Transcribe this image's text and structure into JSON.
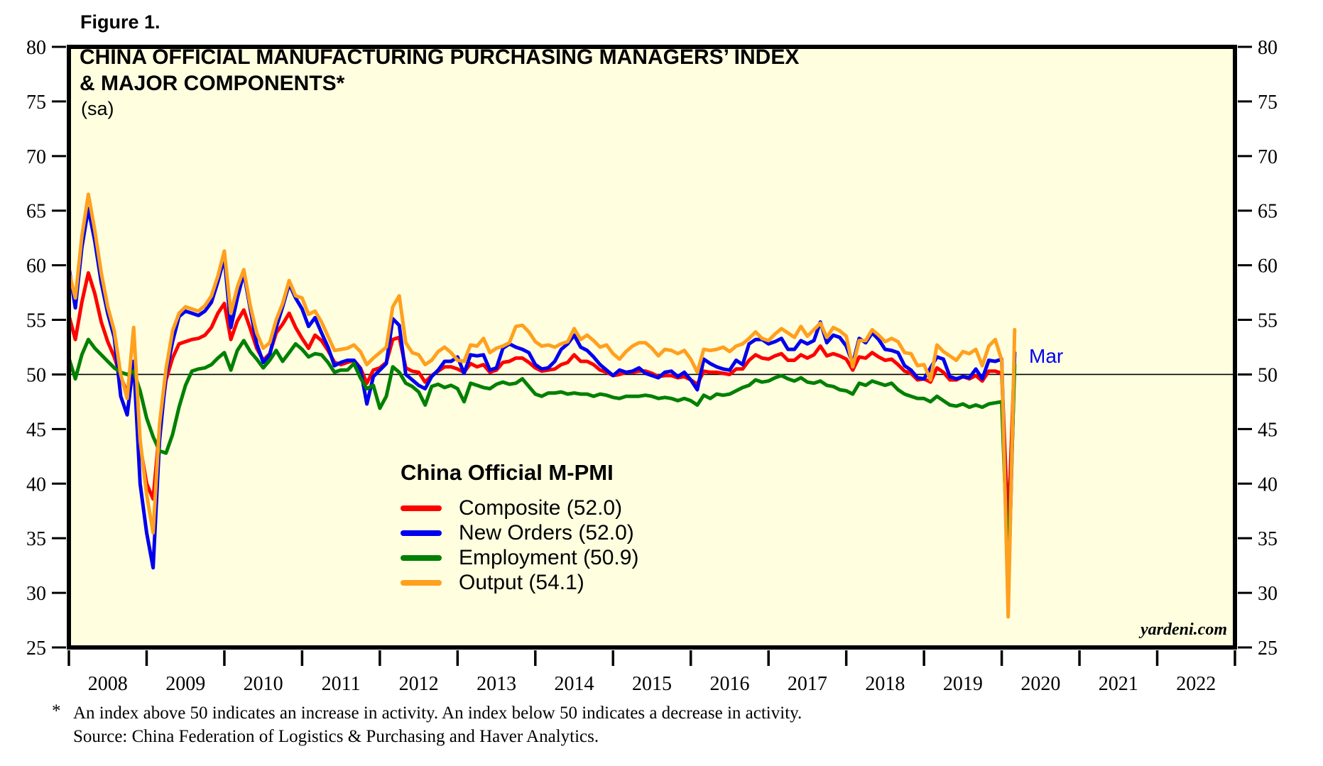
{
  "figure_label": "Figure 1.",
  "header": {
    "title_line1": "CHINA OFFICIAL MANUFACTURING PURCHASING MANAGERS’ INDEX",
    "title_line2": "& MAJOR COMPONENTS*",
    "subtitle": "(sa)"
  },
  "legend": {
    "title": "China Official M-PMI",
    "items": [
      {
        "label": "Composite (52.0)"
      },
      {
        "label": "New Orders (52.0)"
      },
      {
        "label": "Employment (50.9)"
      },
      {
        "label": "Output (54.1)"
      }
    ]
  },
  "annotation": {
    "label": "Mar",
    "color": "#0000ee"
  },
  "watermark": "yardeni.com",
  "footnote": {
    "marker": "*",
    "line1": "An index above 50 indicates an increase in activity. An index below 50 indicates a decrease in activity.",
    "line2": "Source: China Federation of Logistics & Purchasing and Haver Analytics."
  },
  "chart_data": {
    "type": "line",
    "title": "China Official Manufacturing Purchasing Managers' Index & Major Components (sa)",
    "plot_bg": "#ffffe0",
    "axis_color": "#000000",
    "baseline_value": 50,
    "x_axis": {
      "unit": "monthly",
      "start": "Jan 2008",
      "end": "Mar 2020",
      "years": [
        "2008",
        "2009",
        "2010",
        "2011",
        "2012",
        "2013",
        "2014",
        "2015",
        "2016",
        "2017",
        "2018",
        "2019",
        "2020",
        "2021",
        "2022"
      ]
    },
    "y_axis": {
      "min": 25,
      "max": 80,
      "step": 5,
      "ticks": [
        25,
        30,
        35,
        40,
        45,
        50,
        55,
        60,
        65,
        70,
        75,
        80
      ]
    },
    "series": [
      {
        "name": "Composite",
        "latest": 52.0,
        "color": "#ff0000",
        "values": [
          55.4,
          53.2,
          56.6,
          59.3,
          57.4,
          54.8,
          53.0,
          51.6,
          49.8,
          48.3,
          50.8,
          43.5,
          40.0,
          38.6,
          45.0,
          49.5,
          51.5,
          52.8,
          53.0,
          53.2,
          53.3,
          53.6,
          54.3,
          55.6,
          56.5,
          53.2,
          54.9,
          55.9,
          54.2,
          52.4,
          51.3,
          51.9,
          53.8,
          54.6,
          55.6,
          54.3,
          53.3,
          52.4,
          53.6,
          53.1,
          52.2,
          51.1,
          50.9,
          51.1,
          51.3,
          50.6,
          49.2,
          50.4,
          50.6,
          51.1,
          53.2,
          53.4,
          50.6,
          50.3,
          50.2,
          49.3,
          49.9,
          50.3,
          50.7,
          50.7,
          50.5,
          50.2,
          51.0,
          50.7,
          50.9,
          50.2,
          50.4,
          51.1,
          51.2,
          51.5,
          51.5,
          51.1,
          50.6,
          50.3,
          50.4,
          50.5,
          50.9,
          51.1,
          51.8,
          51.2,
          51.2,
          50.9,
          50.4,
          50.2,
          49.9,
          50.0,
          50.2,
          50.2,
          50.3,
          50.3,
          50.1,
          49.8,
          49.9,
          49.9,
          49.7,
          49.8,
          49.5,
          49.1,
          50.3,
          50.2,
          50.2,
          50.1,
          50.0,
          50.5,
          50.5,
          51.3,
          51.8,
          51.5,
          51.4,
          51.7,
          51.9,
          51.3,
          51.3,
          51.8,
          51.5,
          51.8,
          52.6,
          51.7,
          51.9,
          51.7,
          51.4,
          50.4,
          51.6,
          51.5,
          52.0,
          51.6,
          51.3,
          51.4,
          50.9,
          50.3,
          50.1,
          49.5,
          49.6,
          49.3,
          50.6,
          50.2,
          49.5,
          49.5,
          49.8,
          49.6,
          49.9,
          49.4,
          50.3,
          50.3,
          50.1,
          35.7,
          52.0
        ]
      },
      {
        "name": "New Orders",
        "latest": 52.0,
        "color": "#0000ee",
        "values": [
          59.8,
          56.1,
          61.6,
          65.2,
          62.2,
          58.4,
          55.6,
          53.4,
          48.0,
          46.3,
          51.2,
          40.0,
          35.5,
          32.3,
          44.0,
          50.0,
          53.0,
          55.3,
          55.8,
          55.6,
          55.4,
          55.8,
          56.6,
          58.5,
          60.7,
          54.3,
          57.0,
          59.3,
          56.0,
          52.8,
          51.1,
          51.8,
          54.3,
          56.2,
          58.3,
          57.0,
          56.0,
          54.4,
          55.2,
          53.8,
          52.5,
          50.8,
          51.1,
          51.3,
          51.3,
          50.5,
          47.3,
          49.8,
          50.4,
          51.0,
          55.1,
          54.5,
          50.0,
          49.5,
          49.0,
          48.7,
          49.8,
          50.4,
          51.2,
          51.2,
          51.6,
          50.1,
          51.8,
          51.7,
          51.8,
          50.4,
          50.6,
          52.4,
          52.8,
          52.5,
          52.3,
          52.0,
          50.9,
          50.5,
          50.6,
          51.2,
          52.3,
          52.8,
          53.6,
          52.5,
          52.2,
          51.6,
          50.9,
          50.4,
          49.9,
          50.4,
          50.2,
          50.3,
          50.6,
          50.1,
          49.9,
          49.7,
          50.2,
          50.3,
          49.8,
          50.2,
          49.5,
          48.6,
          51.4,
          51.0,
          50.7,
          50.5,
          50.4,
          51.3,
          50.9,
          52.8,
          53.2,
          53.2,
          52.8,
          53.0,
          53.3,
          52.3,
          52.3,
          53.1,
          52.8,
          53.1,
          54.8,
          52.9,
          53.6,
          53.4,
          52.6,
          51.0,
          53.3,
          52.9,
          53.8,
          53.2,
          52.3,
          52.2,
          52.0,
          50.8,
          50.4,
          49.7,
          49.6,
          50.6,
          51.6,
          51.4,
          49.8,
          49.6,
          49.8,
          49.7,
          50.5,
          49.6,
          51.3,
          51.2,
          51.4,
          29.3,
          52.0
        ]
      },
      {
        "name": "Employment",
        "latest": 50.9,
        "color": "#008000",
        "values": [
          51.5,
          49.6,
          51.8,
          53.2,
          52.4,
          51.8,
          51.2,
          50.6,
          50.2,
          50.0,
          50.3,
          48.5,
          46.0,
          44.3,
          43.0,
          42.8,
          44.5,
          47.0,
          49.0,
          50.3,
          50.5,
          50.6,
          50.9,
          51.5,
          52.0,
          50.4,
          52.2,
          53.1,
          52.1,
          51.4,
          50.6,
          51.3,
          52.2,
          51.2,
          52.0,
          52.8,
          52.3,
          51.6,
          51.9,
          51.8,
          51.1,
          50.2,
          50.4,
          50.4,
          51.0,
          49.7,
          48.7,
          49.0,
          46.9,
          48.0,
          50.7,
          50.2,
          49.2,
          48.9,
          48.4,
          47.2,
          48.9,
          49.1,
          48.8,
          49.0,
          48.7,
          47.5,
          49.2,
          49.0,
          48.8,
          48.7,
          49.1,
          49.3,
          49.1,
          49.2,
          49.6,
          48.9,
          48.2,
          48.0,
          48.3,
          48.3,
          48.4,
          48.2,
          48.3,
          48.2,
          48.2,
          48.0,
          48.2,
          48.1,
          47.9,
          47.8,
          48.0,
          48.0,
          48.0,
          48.1,
          48.0,
          47.8,
          47.9,
          47.8,
          47.6,
          47.8,
          47.6,
          47.2,
          48.1,
          47.8,
          48.2,
          48.1,
          48.2,
          48.5,
          48.8,
          49.0,
          49.5,
          49.3,
          49.4,
          49.7,
          49.9,
          49.6,
          49.4,
          49.7,
          49.3,
          49.2,
          49.4,
          49.0,
          48.9,
          48.6,
          48.5,
          48.2,
          49.2,
          49.0,
          49.4,
          49.2,
          49.0,
          49.2,
          48.6,
          48.2,
          48.0,
          47.8,
          47.8,
          47.5,
          48.0,
          47.6,
          47.2,
          47.1,
          47.3,
          47.0,
          47.2,
          47.0,
          47.3,
          47.4,
          47.5,
          31.8,
          50.9
        ]
      },
      {
        "name": "Output",
        "latest": 54.1,
        "color": "#ffa01e",
        "values": [
          59.4,
          57.0,
          62.6,
          66.5,
          63.2,
          59.3,
          56.2,
          54.0,
          50.0,
          47.8,
          54.3,
          44.0,
          39.0,
          35.5,
          45.5,
          50.5,
          54.0,
          55.6,
          56.2,
          56.0,
          55.8,
          56.3,
          57.2,
          59.0,
          61.3,
          55.6,
          58.0,
          59.6,
          56.3,
          53.8,
          52.4,
          52.9,
          55.0,
          56.5,
          58.6,
          57.2,
          57.0,
          55.5,
          55.8,
          54.8,
          53.5,
          52.2,
          52.3,
          52.4,
          52.7,
          52.1,
          50.9,
          51.5,
          52.0,
          52.5,
          56.2,
          57.2,
          52.9,
          52.0,
          51.8,
          50.9,
          51.3,
          52.1,
          52.5,
          52.0,
          51.3,
          51.2,
          52.7,
          52.6,
          53.3,
          52.0,
          52.4,
          52.6,
          52.9,
          54.4,
          54.5,
          53.9,
          53.0,
          52.6,
          52.7,
          52.5,
          52.8,
          53.0,
          54.2,
          53.2,
          53.6,
          53.1,
          52.5,
          52.7,
          51.9,
          51.4,
          52.1,
          52.6,
          52.9,
          52.9,
          52.4,
          51.7,
          52.3,
          52.2,
          51.9,
          52.2,
          51.4,
          50.2,
          52.3,
          52.2,
          52.3,
          52.5,
          52.1,
          52.6,
          52.8,
          53.3,
          53.9,
          53.3,
          53.1,
          53.7,
          54.2,
          53.8,
          53.4,
          54.4,
          53.5,
          54.1,
          54.7,
          53.4,
          54.3,
          54.0,
          53.5,
          50.7,
          53.1,
          53.1,
          54.1,
          53.6,
          53.0,
          53.3,
          53.0,
          52.0,
          51.9,
          50.8,
          50.9,
          49.5,
          52.7,
          52.1,
          51.7,
          51.3,
          52.1,
          51.9,
          52.3,
          50.8,
          52.6,
          53.2,
          51.3,
          27.8,
          54.1
        ]
      }
    ]
  }
}
